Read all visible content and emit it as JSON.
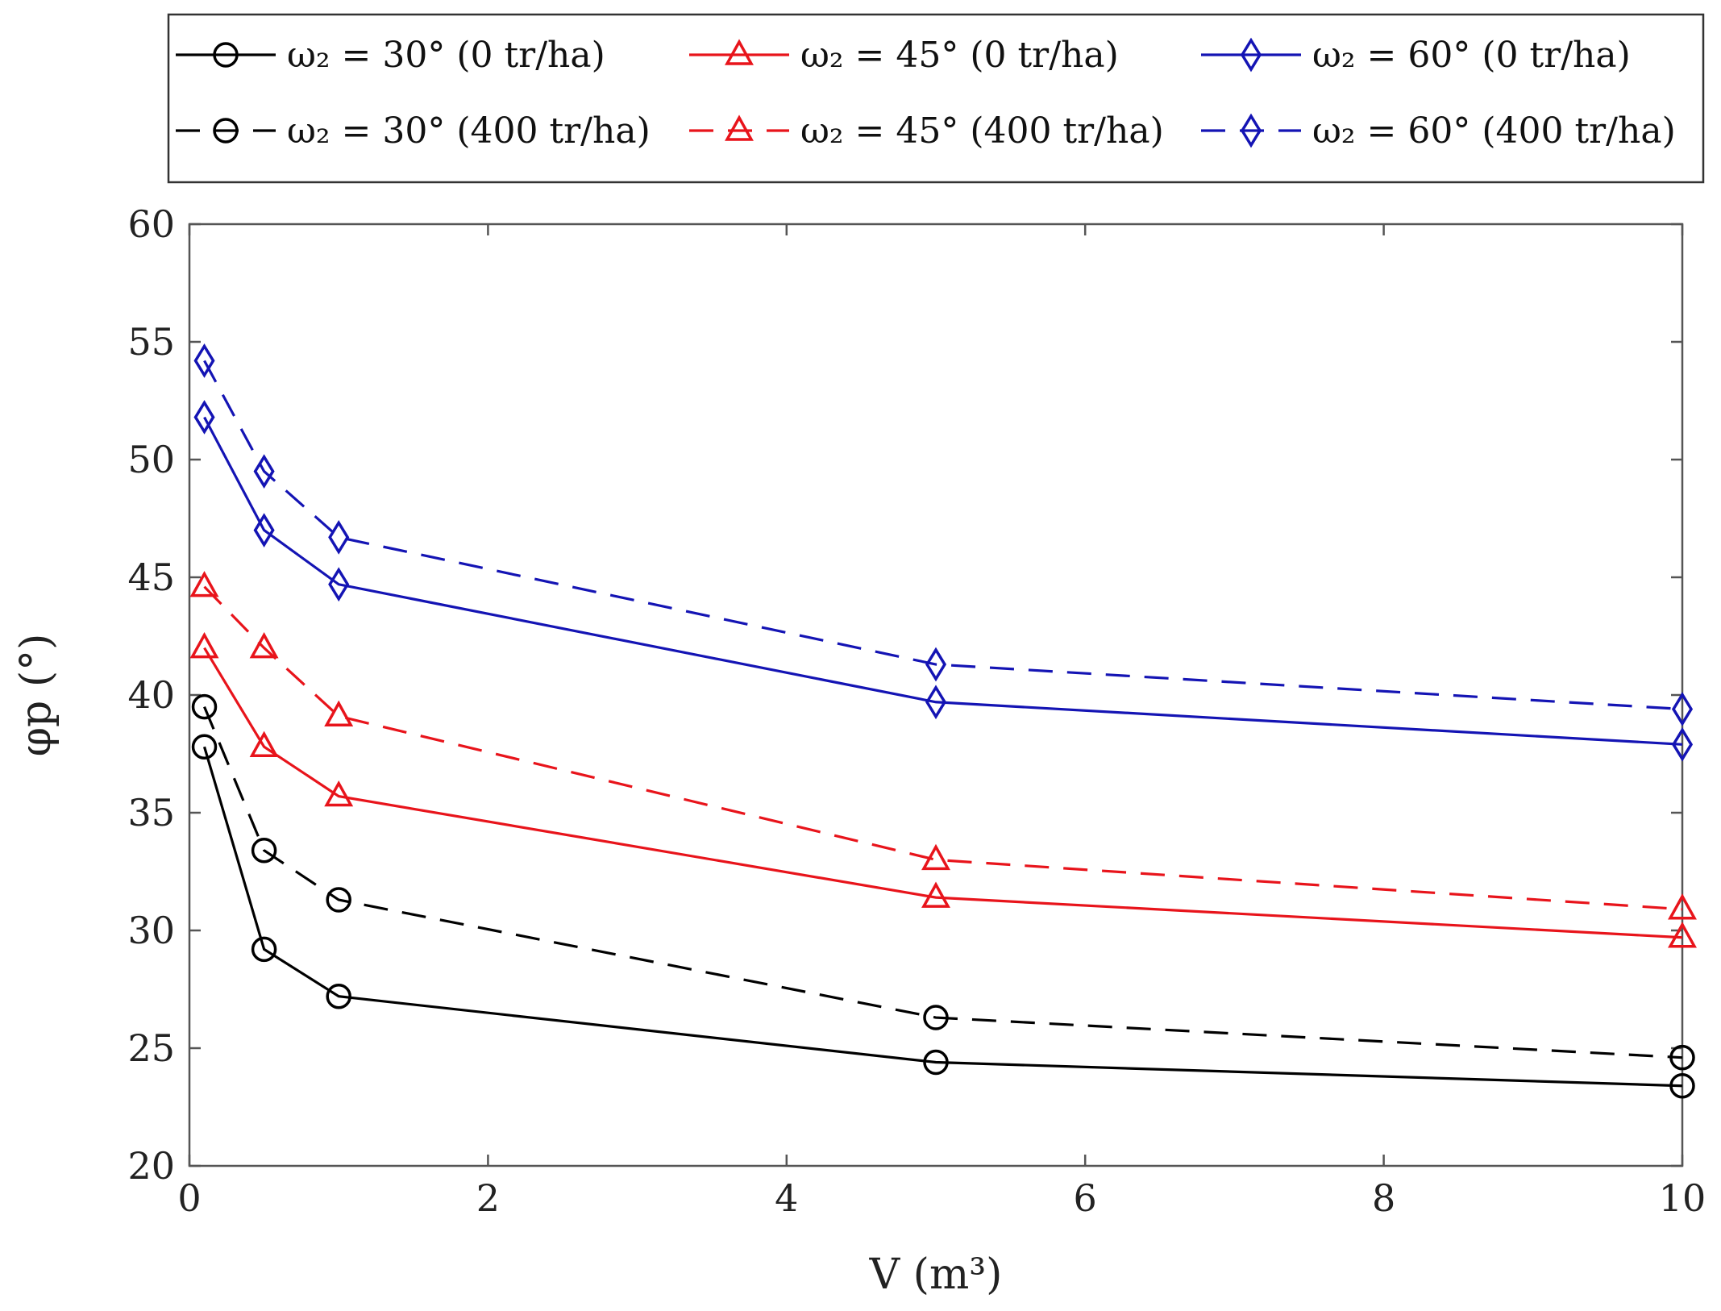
{
  "chart_data": {
    "type": "line",
    "title": "",
    "xlabel": "V (m³)",
    "ylabel": "φp (°)",
    "xlim": [
      0,
      10
    ],
    "ylim": [
      20,
      60
    ],
    "xticks": [
      0,
      2,
      4,
      6,
      8,
      10
    ],
    "yticks": [
      20,
      25,
      30,
      35,
      40,
      45,
      50,
      55,
      60
    ],
    "grid": false,
    "legend_placement": "above plot, 3 columns",
    "x": [
      0.1,
      0.5,
      1,
      5,
      10
    ],
    "series": [
      {
        "name": "ω₂ = 30° (0 tr/ha)",
        "color": "#000000",
        "dash": "solid",
        "marker": "circle",
        "values": [
          37.8,
          29.2,
          27.2,
          24.4,
          23.4
        ]
      },
      {
        "name": "ω₂ = 45° (0 tr/ha)",
        "color": "#e8141b",
        "dash": "solid",
        "marker": "triangle",
        "values": [
          42.0,
          37.8,
          35.7,
          31.4,
          29.7
        ]
      },
      {
        "name": "ω₂ = 60° (0 tr/ha)",
        "color": "#1414b4",
        "dash": "solid",
        "marker": "diamond",
        "values": [
          51.8,
          47.0,
          44.7,
          39.7,
          37.9
        ]
      },
      {
        "name": "ω₂ = 30° (400 tr/ha)",
        "color": "#000000",
        "dash": "dashed",
        "marker": "circle",
        "values": [
          39.5,
          33.4,
          31.3,
          26.3,
          24.6
        ]
      },
      {
        "name": "ω₂ = 45° (400 tr/ha)",
        "color": "#e8141b",
        "dash": "dashed",
        "marker": "triangle",
        "values": [
          44.6,
          42.0,
          39.1,
          33.0,
          30.9
        ]
      },
      {
        "name": "ω₂ = 60° (400 tr/ha)",
        "color": "#1414b4",
        "dash": "dashed",
        "marker": "diamond",
        "values": [
          54.2,
          49.5,
          46.7,
          41.3,
          39.4
        ]
      }
    ]
  }
}
